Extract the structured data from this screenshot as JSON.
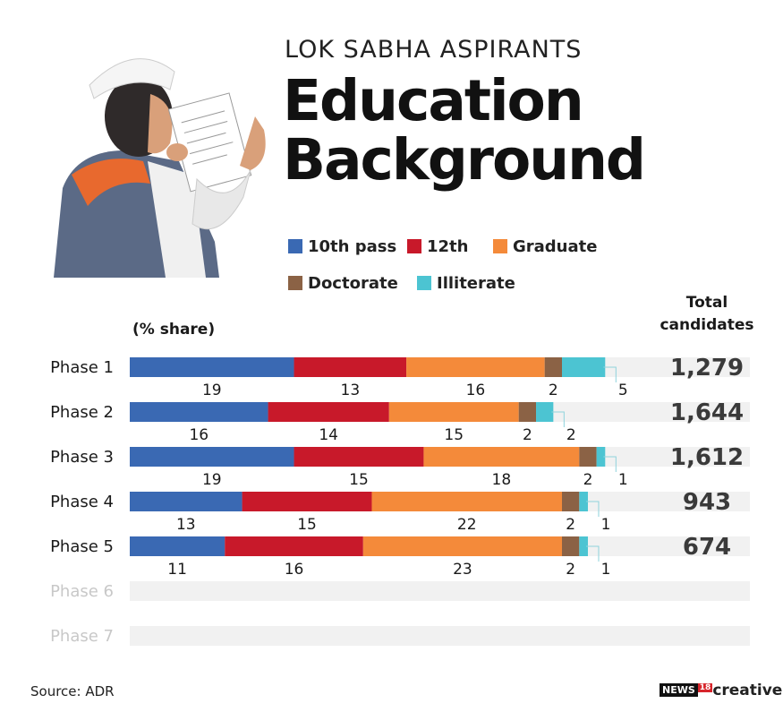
{
  "header": {
    "kicker": "LOK SABHA ASPIRANTS",
    "title_line1": "Education",
    "title_line2": "Background"
  },
  "legend": [
    {
      "label": "10th pass",
      "color": "#3a69b3"
    },
    {
      "label": "12th",
      "color": "#c8192a"
    },
    {
      "label": "Graduate",
      "color": "#f48a3a"
    },
    {
      "label": "Doctorate",
      "color": "#8b6245"
    },
    {
      "label": "Illiterate",
      "color": "#4cc4d2"
    }
  ],
  "unit_note": "(% share)",
  "totals_header_line1": "Total",
  "totals_header_line2": "candidates",
  "chart_data": {
    "type": "bar",
    "orientation": "horizontal",
    "stacked": true,
    "unit": "% share",
    "categories": [
      "Phase 1",
      "Phase 2",
      "Phase 3",
      "Phase 4",
      "Phase 5",
      "Phase 6",
      "Phase 7"
    ],
    "series": [
      {
        "name": "10th pass",
        "color": "#3a69b3",
        "values": [
          19,
          16,
          19,
          13,
          11,
          null,
          null
        ]
      },
      {
        "name": "12th",
        "color": "#c8192a",
        "values": [
          13,
          14,
          15,
          15,
          16,
          null,
          null
        ]
      },
      {
        "name": "Graduate",
        "color": "#f48a3a",
        "values": [
          16,
          15,
          18,
          22,
          23,
          null,
          null
        ]
      },
      {
        "name": "Doctorate",
        "color": "#8b6245",
        "values": [
          2,
          2,
          2,
          2,
          2,
          null,
          null
        ]
      },
      {
        "name": "Illiterate",
        "color": "#4cc4d2",
        "values": [
          5,
          2,
          1,
          1,
          1,
          null,
          null
        ]
      }
    ],
    "total_candidates": [
      "1,279",
      "1,644",
      "1,612",
      "943",
      "674",
      "",
      ""
    ],
    "track_color": "#f1f1f1",
    "inactive_label_color": "#c8c8c8"
  },
  "footer": {
    "source": "Source: ADR",
    "brand_news": "NEWS",
    "brand_18": "18",
    "brand_creative": "creative"
  }
}
